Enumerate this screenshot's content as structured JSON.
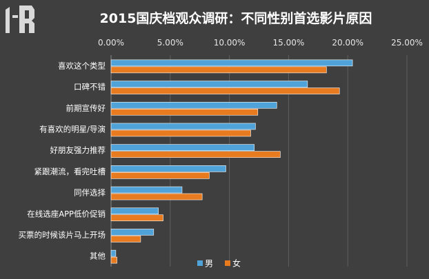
{
  "chart_data": {
    "type": "bar",
    "orientation": "horizontal",
    "title": "2015国庆档观众调研：不同性别首选影片原因",
    "categories": [
      "喜欢这个类型",
      "口碑不错",
      "前期宣传好",
      "有喜欢的明星/导演",
      "好朋友强力推荐",
      "紧跟潮流，看完吐槽",
      "同伴选择",
      "在线选座APP低价促销",
      "买票的时候该片马上开场",
      "其他"
    ],
    "series": [
      {
        "name": "男",
        "color": "#4fa3d8",
        "values": [
          20.4,
          16.6,
          14.0,
          12.2,
          12.1,
          9.7,
          6.0,
          4.0,
          3.6,
          0.4
        ]
      },
      {
        "name": "女",
        "color": "#e87a1f",
        "values": [
          18.2,
          19.3,
          12.4,
          11.8,
          14.3,
          8.3,
          7.7,
          4.4,
          2.5,
          0.5
        ]
      }
    ],
    "xticks": [
      "0.00%",
      "5.00%",
      "10.00%",
      "15.00%",
      "20.00%",
      "25.00%"
    ],
    "xlim": [
      0,
      25
    ],
    "grid": true,
    "legend_position": "bottom"
  }
}
